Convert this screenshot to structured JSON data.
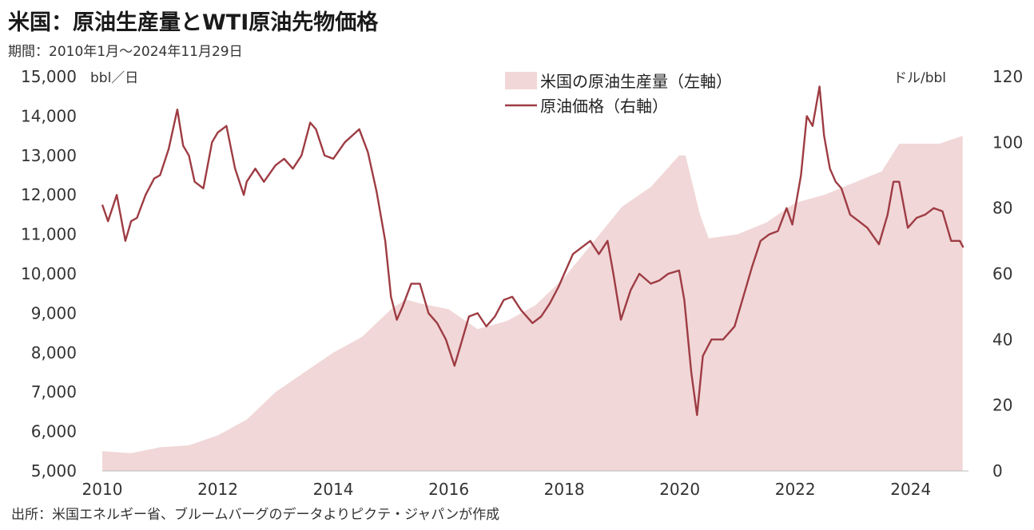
{
  "title": "米国：原油生産量とWTI原油先物価格",
  "period": "期間：2010年1月～2024年11月29日",
  "source": "出所：米国エネルギー省、ブルームバーグのデータよりピクテ・ジャパンが作成",
  "colors": {
    "production": "#f1d7d8",
    "price": "#9e3c43"
  },
  "chart_data": {
    "type": "area",
    "title": "米国：原油生産量とWTI原油先物価格",
    "subtitle": "期間：2010年1月～2024年11月29日",
    "x_ticks": [
      "2010",
      "2012",
      "2014",
      "2016",
      "2018",
      "2020",
      "2022",
      "2024"
    ],
    "xlim": [
      2010,
      2025
    ],
    "y_left": {
      "unit": "bbl／日",
      "range": [
        5000,
        15000
      ],
      "ticks": [
        "15,000",
        "14,000",
        "13,000",
        "12,000",
        "11,000",
        "10,000",
        "9,000",
        "8,000",
        "7,000",
        "6,000",
        "5,000"
      ]
    },
    "y_right": {
      "unit": "ドル/bbl",
      "range": [
        0,
        120
      ],
      "ticks": [
        "120",
        "100",
        "80",
        "60",
        "40",
        "20",
        "0"
      ]
    },
    "legend": {
      "placement": "top-center"
    },
    "series": [
      {
        "name": "米国の原油生産量（左軸）",
        "type": "area",
        "axis": "left",
        "x": [
          2010.0,
          2010.5,
          2011.0,
          2011.5,
          2012.0,
          2012.5,
          2013.0,
          2013.5,
          2014.0,
          2014.5,
          2015.0,
          2015.25,
          2015.5,
          2016.0,
          2016.5,
          2017.0,
          2017.5,
          2018.0,
          2018.5,
          2019.0,
          2019.5,
          2019.99,
          2020.1,
          2020.35,
          2020.5,
          2021.0,
          2021.5,
          2022.0,
          2022.5,
          2023.0,
          2023.5,
          2023.8,
          2024.0,
          2024.5,
          2024.9
        ],
        "values": [
          5500,
          5450,
          5600,
          5650,
          5900,
          6300,
          7000,
          7500,
          8000,
          8400,
          9100,
          9350,
          9250,
          9100,
          8600,
          8800,
          9200,
          9900,
          10800,
          11700,
          12200,
          13000,
          13000,
          11500,
          10900,
          11000,
          11300,
          11800,
          12000,
          12300,
          12600,
          13300,
          13300,
          13300,
          13500
        ]
      },
      {
        "name": "原油価格（右軸）",
        "type": "line",
        "axis": "right",
        "x": [
          2010.0,
          2010.1,
          2010.25,
          2010.4,
          2010.5,
          2010.6,
          2010.75,
          2010.9,
          2011.0,
          2011.15,
          2011.3,
          2011.4,
          2011.5,
          2011.6,
          2011.75,
          2011.9,
          2012.0,
          2012.15,
          2012.3,
          2012.45,
          2012.5,
          2012.65,
          2012.8,
          2013.0,
          2013.15,
          2013.3,
          2013.45,
          2013.6,
          2013.7,
          2013.85,
          2014.0,
          2014.2,
          2014.45,
          2014.6,
          2014.75,
          2014.9,
          2015.0,
          2015.1,
          2015.2,
          2015.35,
          2015.5,
          2015.65,
          2015.8,
          2015.95,
          2016.1,
          2016.2,
          2016.35,
          2016.5,
          2016.65,
          2016.8,
          2016.95,
          2017.1,
          2017.25,
          2017.45,
          2017.6,
          2017.75,
          2017.9,
          2018.0,
          2018.15,
          2018.3,
          2018.45,
          2018.6,
          2018.75,
          2018.85,
          2018.98,
          2019.15,
          2019.3,
          2019.5,
          2019.65,
          2019.8,
          2019.99,
          2020.08,
          2020.2,
          2020.3,
          2020.4,
          2020.55,
          2020.75,
          2020.95,
          2021.1,
          2021.25,
          2021.4,
          2021.55,
          2021.7,
          2021.85,
          2021.95,
          2022.1,
          2022.2,
          2022.3,
          2022.42,
          2022.5,
          2022.6,
          2022.7,
          2022.8,
          2022.95,
          2023.1,
          2023.25,
          2023.45,
          2023.6,
          2023.7,
          2023.8,
          2023.95,
          2024.1,
          2024.25,
          2024.4,
          2024.55,
          2024.7,
          2024.85,
          2024.91
        ],
        "values": [
          81,
          76,
          84,
          70,
          76,
          77,
          84,
          89,
          90,
          98,
          110,
          99,
          96,
          88,
          86,
          100,
          103,
          105,
          92,
          84,
          88,
          92,
          88,
          93,
          95,
          92,
          96,
          106,
          104,
          96,
          95,
          100,
          104,
          97,
          85,
          70,
          53,
          46,
          50,
          57,
          57,
          48,
          45,
          40,
          32,
          38,
          47,
          48,
          44,
          47,
          52,
          53,
          49,
          45,
          47,
          51,
          56,
          60,
          66,
          68,
          70,
          66,
          70,
          60,
          46,
          55,
          60,
          57,
          58,
          60,
          61,
          52,
          30,
          17,
          35,
          40,
          40,
          44,
          53,
          62,
          70,
          72,
          73,
          80,
          75,
          90,
          108,
          105,
          117,
          102,
          92,
          88,
          86,
          78,
          76,
          74,
          69,
          78,
          88,
          88,
          74,
          77,
          78,
          80,
          79,
          70,
          70,
          68
        ]
      }
    ]
  }
}
